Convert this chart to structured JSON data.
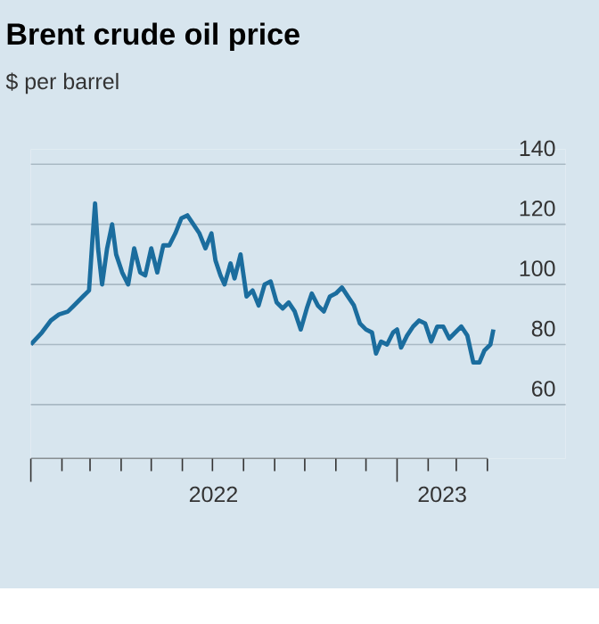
{
  "chart_data": {
    "type": "line",
    "title": "Brent crude oil price",
    "subtitle": "$ per barrel",
    "x": [
      "2022-01-01",
      "2022-01-12",
      "2022-01-21",
      "2022-01-29",
      "2022-02-07",
      "2022-02-13",
      "2022-02-22",
      "2022-02-28",
      "2022-03-03",
      "2022-03-06",
      "2022-03-09",
      "2022-03-13",
      "2022-03-18",
      "2022-03-23",
      "2022-03-27",
      "2022-04-02",
      "2022-04-08",
      "2022-04-14",
      "2022-04-20",
      "2022-04-25",
      "2022-05-01",
      "2022-05-07",
      "2022-05-13",
      "2022-05-19",
      "2022-05-25",
      "2022-05-31",
      "2022-06-06",
      "2022-06-12",
      "2022-06-18",
      "2022-06-24",
      "2022-06-30",
      "2022-07-04",
      "2022-07-09",
      "2022-07-13",
      "2022-07-19",
      "2022-07-23",
      "2022-07-29",
      "2022-08-04",
      "2022-08-10",
      "2022-08-16",
      "2022-08-22",
      "2022-08-28",
      "2022-09-03",
      "2022-09-09",
      "2022-09-15",
      "2022-09-21",
      "2022-09-27",
      "2022-10-03",
      "2022-10-08",
      "2022-10-14",
      "2022-10-20",
      "2022-10-26",
      "2022-11-01",
      "2022-11-07",
      "2022-11-13",
      "2022-11-19",
      "2022-11-25",
      "2022-12-01",
      "2022-12-07",
      "2022-12-11",
      "2022-12-16",
      "2022-12-22",
      "2022-12-28",
      "2023-01-01",
      "2023-01-05",
      "2023-01-11",
      "2023-01-17",
      "2023-01-23",
      "2023-01-29",
      "2023-02-04",
      "2023-02-10",
      "2023-02-16",
      "2023-02-22",
      "2023-02-28",
      "2023-03-06",
      "2023-03-12",
      "2023-03-18",
      "2023-03-24",
      "2023-03-29",
      "2023-04-04",
      "2023-04-07"
    ],
    "series": [
      {
        "color": "#1b6d9e",
        "values": [
          80,
          84,
          88,
          90,
          91,
          93,
          96,
          98,
          113,
          127,
          112,
          100,
          112,
          120,
          110,
          104,
          100,
          112,
          104,
          103,
          112,
          104,
          113,
          113,
          117,
          122,
          123,
          120,
          117,
          112,
          117,
          108,
          103,
          100,
          107,
          102,
          110,
          96,
          98,
          93,
          100,
          101,
          94,
          92,
          94,
          91,
          85,
          92,
          97,
          93,
          91,
          96,
          97,
          99,
          96,
          93,
          87,
          85,
          84,
          77,
          81,
          80,
          84,
          85,
          79,
          83,
          86,
          88,
          87,
          81,
          86,
          86,
          82,
          84,
          86,
          83,
          74,
          74,
          78,
          80,
          85
        ]
      }
    ],
    "xlim": [
      "2022-01-01",
      "2023-06-18"
    ],
    "xticks": [
      {
        "value": "2022-01-01",
        "label": null
      },
      {
        "value": "2022-02-01",
        "label": null
      },
      {
        "value": "2022-03-01",
        "label": null
      },
      {
        "value": "2022-04-01",
        "label": null
      },
      {
        "value": "2022-05-01",
        "label": null
      },
      {
        "value": "2022-06-01",
        "label": null
      },
      {
        "value": "2022-07-01",
        "label": null
      },
      {
        "value": "2022-07-02",
        "label": "2022"
      },
      {
        "value": "2022-08-01",
        "label": null
      },
      {
        "value": "2022-09-01",
        "label": null
      },
      {
        "value": "2022-10-01",
        "label": null
      },
      {
        "value": "2022-11-01",
        "label": null
      },
      {
        "value": "2022-12-01",
        "label": null
      },
      {
        "value": "2023-01-01",
        "label": null
      },
      {
        "value": "2023-02-01",
        "label": null
      },
      {
        "value": "2023-02-15",
        "label": "2023"
      },
      {
        "value": "2023-03-01",
        "label": null
      },
      {
        "value": "2023-04-01",
        "label": null
      }
    ],
    "ylim": [
      42,
      145
    ],
    "yticks": [
      60,
      80,
      100,
      120,
      140
    ],
    "grid": "y"
  }
}
